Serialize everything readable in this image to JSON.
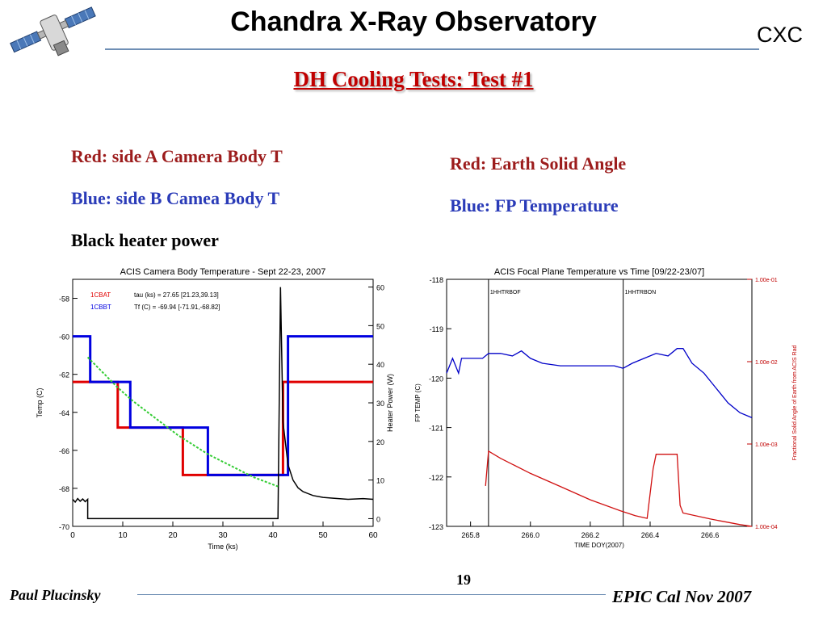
{
  "header": {
    "title": "Chandra X-Ray Observatory",
    "org": "CXC"
  },
  "slide": {
    "title": "DH Cooling Tests: Test #1"
  },
  "left_legend": {
    "line1": "Red: side A Camera Body T",
    "line2": "Blue: side B Camea Body T",
    "line3": "Black heater power"
  },
  "right_legend": {
    "line1": "Red: Earth Solid Angle",
    "line2": "Blue: FP Temperature"
  },
  "footer": {
    "author": "Paul Plucinsky",
    "page": "19",
    "event": "EPIC Cal Nov 2007"
  },
  "colors": {
    "title_red": "#c00000",
    "text_red": "#9c1c1c",
    "text_blue": "#2a3bb8",
    "rule_blue": "#6f8fb5",
    "fit_green": "#33cc33"
  },
  "chart_data": [
    {
      "type": "line",
      "title": "ACIS Camera Body Temperature - Sept 22-23, 2007",
      "xlabel": "Time (ks)",
      "ylabel": "Temp (C)",
      "y2label": "Heater Power (W)",
      "xlim": [
        0,
        60
      ],
      "ylim": [
        -70,
        -57
      ],
      "y2lim": [
        -2,
        62
      ],
      "xticks": [
        "0",
        "10",
        "20",
        "30",
        "40",
        "50",
        "60"
      ],
      "yticks": [
        "-58",
        "-60",
        "-62",
        "-64",
        "-66",
        "-68",
        "-70"
      ],
      "y2ticks": [
        "0",
        "10",
        "20",
        "30",
        "40",
        "50",
        "60"
      ],
      "legend": {
        "entries": [
          {
            "name": "1CBAT",
            "color": "#e00000"
          },
          {
            "name": "1CBBT",
            "color": "#0000e0"
          }
        ],
        "annotations": [
          "tau (ks) = 27.65 [21.23,39.13]",
          "Tf (C) = -69.94 [-71.91,-68.82]"
        ],
        "position": "top-left"
      },
      "series": [
        {
          "name": "1CBAT",
          "color": "#e00000",
          "axis": "left",
          "points": [
            [
              0,
              -62.4
            ],
            [
              9,
              -62.4
            ],
            [
              9,
              -64.8
            ],
            [
              22,
              -64.8
            ],
            [
              22,
              -67.3
            ],
            [
              42,
              -67.3
            ],
            [
              42,
              -62.4
            ],
            [
              60,
              -62.4
            ]
          ]
        },
        {
          "name": "1CBBT",
          "color": "#0000e0",
          "axis": "left",
          "points": [
            [
              0,
              -60
            ],
            [
              3.5,
              -60
            ],
            [
              3.5,
              -62.4
            ],
            [
              11.5,
              -62.4
            ],
            [
              11.5,
              -64.8
            ],
            [
              27,
              -64.8
            ],
            [
              27,
              -67.3
            ],
            [
              43,
              -67.3
            ],
            [
              43,
              -60
            ],
            [
              60,
              -60
            ]
          ]
        },
        {
          "name": "Heater Power",
          "color": "#000000",
          "axis": "right",
          "points": [
            [
              0,
              5
            ],
            [
              0.5,
              4.3
            ],
            [
              1,
              5.2
            ],
            [
              1.5,
              4.5
            ],
            [
              2,
              5.1
            ],
            [
              2.5,
              4.4
            ],
            [
              3,
              5
            ],
            [
              3,
              0
            ],
            [
              41,
              0
            ],
            [
              41.5,
              60
            ],
            [
              42,
              25
            ],
            [
              43,
              14
            ],
            [
              44,
              10
            ],
            [
              45,
              8
            ],
            [
              46,
              7
            ],
            [
              48,
              6
            ],
            [
              50,
              5.5
            ],
            [
              52,
              5.3
            ],
            [
              55,
              5
            ],
            [
              58,
              5.2
            ],
            [
              60,
              5
            ]
          ]
        },
        {
          "name": "fit",
          "color": "#33cc33",
          "axis": "left",
          "dashed": true,
          "points": [
            [
              3,
              -61.1
            ],
            [
              6,
              -61.9
            ],
            [
              9,
              -62.7
            ],
            [
              12,
              -63.4
            ],
            [
              15,
              -64.0
            ],
            [
              18,
              -64.6
            ],
            [
              21,
              -65.2
            ],
            [
              24,
              -65.7
            ],
            [
              27,
              -66.2
            ],
            [
              30,
              -66.6
            ],
            [
              33,
              -67.0
            ],
            [
              36,
              -67.4
            ],
            [
              39,
              -67.7
            ],
            [
              41,
              -67.9
            ]
          ]
        }
      ]
    },
    {
      "type": "line",
      "title": "ACIS Focal Plane Temperature vs Time [09/22-23/07]",
      "xlabel": "TIME DOY(2007)",
      "ylabel": "FP TEMP (C)",
      "y2label": "Fractional Solid Angle of Earth from ACIS Rad",
      "y2scale": "log",
      "xlim": [
        265.72,
        266.74
      ],
      "ylim": [
        -123,
        -118
      ],
      "y2lim": [
        0.0001,
        0.1
      ],
      "xticks": [
        "265.8",
        "266.0",
        "266.2",
        "266.4",
        "266.6"
      ],
      "yticks": [
        "-118",
        "-119",
        "-120",
        "-121",
        "-122",
        "-123"
      ],
      "y2ticks": [
        "1.00e-01",
        "1.00e-02",
        "1.00e-03",
        "1.00e-04"
      ],
      "annotations": [
        {
          "text": "1HHTRBOF",
          "x": 265.86
        },
        {
          "text": "1HHTRBON",
          "x": 266.31
        }
      ],
      "series": [
        {
          "name": "FP Temperature",
          "color": "#0000c8",
          "axis": "left",
          "points": [
            [
              265.72,
              -119.9
            ],
            [
              265.74,
              -119.6
            ],
            [
              265.76,
              -119.9
            ],
            [
              265.77,
              -119.6
            ],
            [
              265.8,
              -119.6
            ],
            [
              265.84,
              -119.6
            ],
            [
              265.86,
              -119.5
            ],
            [
              265.9,
              -119.5
            ],
            [
              265.94,
              -119.55
            ],
            [
              265.97,
              -119.45
            ],
            [
              266.0,
              -119.6
            ],
            [
              266.04,
              -119.7
            ],
            [
              266.1,
              -119.75
            ],
            [
              266.16,
              -119.75
            ],
            [
              266.22,
              -119.75
            ],
            [
              266.28,
              -119.75
            ],
            [
              266.31,
              -119.8
            ],
            [
              266.34,
              -119.7
            ],
            [
              266.38,
              -119.6
            ],
            [
              266.42,
              -119.5
            ],
            [
              266.46,
              -119.55
            ],
            [
              266.49,
              -119.4
            ],
            [
              266.51,
              -119.4
            ],
            [
              266.54,
              -119.7
            ],
            [
              266.58,
              -119.9
            ],
            [
              266.62,
              -120.2
            ],
            [
              266.66,
              -120.5
            ],
            [
              266.7,
              -120.7
            ],
            [
              266.74,
              -120.8
            ]
          ]
        },
        {
          "name": "Earth Solid Angle",
          "color": "#d01010",
          "axis": "right",
          "points": [
            [
              265.85,
              0.00031
            ],
            [
              265.86,
              0.00082
            ],
            [
              265.9,
              0.00067
            ],
            [
              266.0,
              0.00044
            ],
            [
              266.1,
              0.000305
            ],
            [
              266.2,
              0.00021
            ],
            [
              266.3,
              0.000155
            ],
            [
              266.35,
              0.000135
            ],
            [
              266.39,
              0.000125
            ],
            [
              266.41,
              0.0005
            ],
            [
              266.42,
              0.00075
            ],
            [
              266.49,
              0.00075
            ],
            [
              266.5,
              0.00018
            ],
            [
              266.51,
              0.000145
            ],
            [
              266.6,
              0.000123
            ],
            [
              266.7,
              0.000105
            ],
            [
              266.74,
              0.0001
            ]
          ]
        }
      ]
    }
  ]
}
